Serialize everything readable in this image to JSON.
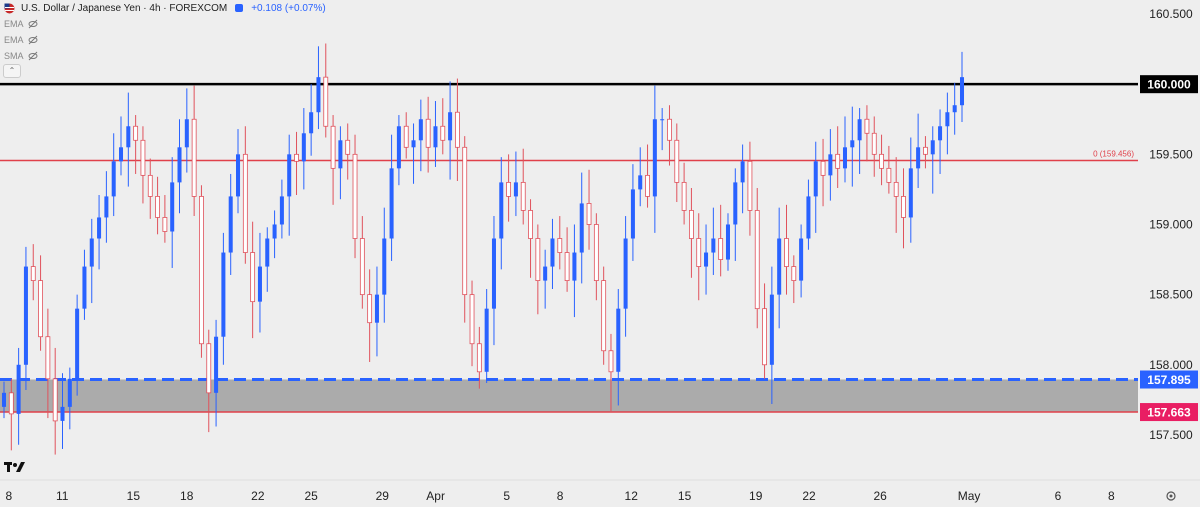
{
  "header": {
    "title": "U.S. Dollar / Japanese Yen · 4h · FOREXCOM",
    "change": "+0.108 (+0.07%)",
    "indicators": [
      "EMA",
      "EMA",
      "SMA"
    ]
  },
  "colors": {
    "up": "#2962ff",
    "down": "#e0525c",
    "resistance": "#000000",
    "fib_line": "#e0404a",
    "support_top": "#2962ff",
    "support_bottom": "#e0404a",
    "zone_fill": "#a6a6a6",
    "label_magenta": "#e91e63"
  },
  "chart_data": {
    "type": "candlestick",
    "title": "U.S. Dollar / Japanese Yen · 4h · FOREXCOM",
    "xlabel": "",
    "ylabel": "",
    "ylim": [
      157.25,
      160.6
    ],
    "y_ticks": [
      "160.500",
      "160.000",
      "159.500",
      "159.000",
      "158.500",
      "158.000",
      "157.500"
    ],
    "y_tick_values": [
      160.5,
      160.0,
      159.5,
      159.0,
      158.5,
      158.0,
      157.5
    ],
    "x_ticks": [
      "8",
      "11",
      "15",
      "18",
      "22",
      "25",
      "29",
      "Apr",
      "5",
      "8",
      "12",
      "15",
      "19",
      "22",
      "26",
      "May",
      "6",
      "8"
    ],
    "x_tick_days": [
      0,
      3,
      7,
      10,
      14,
      17,
      21,
      24,
      28,
      31,
      35,
      38,
      42,
      45,
      49,
      54,
      59,
      62
    ],
    "x_range_days": [
      -0.5,
      63.5
    ],
    "levels": [
      {
        "name": "resistance",
        "value": 160.0,
        "label": "160.000"
      },
      {
        "name": "fib",
        "value": 159.456,
        "label": "0 (159.456)"
      },
      {
        "name": "zone_top",
        "value": 157.895,
        "label": "157.895"
      },
      {
        "name": "zone_bottom",
        "value": 157.663,
        "label": "157.663"
      }
    ],
    "closes": [
      157.8,
      157.65,
      158.0,
      158.7,
      158.6,
      158.2,
      157.9,
      157.6,
      157.7,
      157.9,
      158.4,
      158.7,
      158.9,
      159.05,
      159.2,
      159.45,
      159.55,
      159.7,
      159.6,
      159.35,
      159.2,
      159.05,
      158.95,
      159.3,
      159.55,
      159.75,
      159.2,
      158.15,
      157.8,
      158.2,
      158.8,
      159.2,
      159.5,
      158.8,
      158.45,
      158.7,
      158.9,
      159.0,
      159.2,
      159.5,
      159.45,
      159.65,
      159.8,
      160.05,
      159.7,
      159.4,
      159.6,
      159.5,
      158.9,
      158.5,
      158.3,
      158.5,
      158.9,
      159.4,
      159.7,
      159.55,
      159.6,
      159.75,
      159.55,
      159.7,
      159.6,
      159.8,
      159.55,
      158.5,
      158.15,
      157.95,
      158.4,
      158.9,
      159.3,
      159.2,
      159.3,
      159.1,
      158.9,
      158.6,
      158.7,
      158.9,
      158.8,
      158.6,
      158.8,
      159.15,
      159.0,
      158.6,
      158.1,
      157.95,
      158.4,
      158.9,
      159.25,
      159.35,
      159.2,
      159.75,
      159.75,
      159.6,
      159.3,
      159.1,
      158.9,
      158.7,
      158.8,
      158.9,
      158.75,
      159.0,
      159.3,
      159.45,
      159.1,
      158.4,
      158.0,
      158.5,
      158.9,
      158.7,
      158.6,
      158.9,
      159.2,
      159.45,
      159.35,
      159.5,
      159.4,
      159.55,
      159.6,
      159.75,
      159.65,
      159.5,
      159.4,
      159.3,
      159.2,
      159.05,
      159.4,
      159.55,
      159.5,
      159.6,
      159.7,
      159.8,
      159.85,
      160.05
    ]
  }
}
